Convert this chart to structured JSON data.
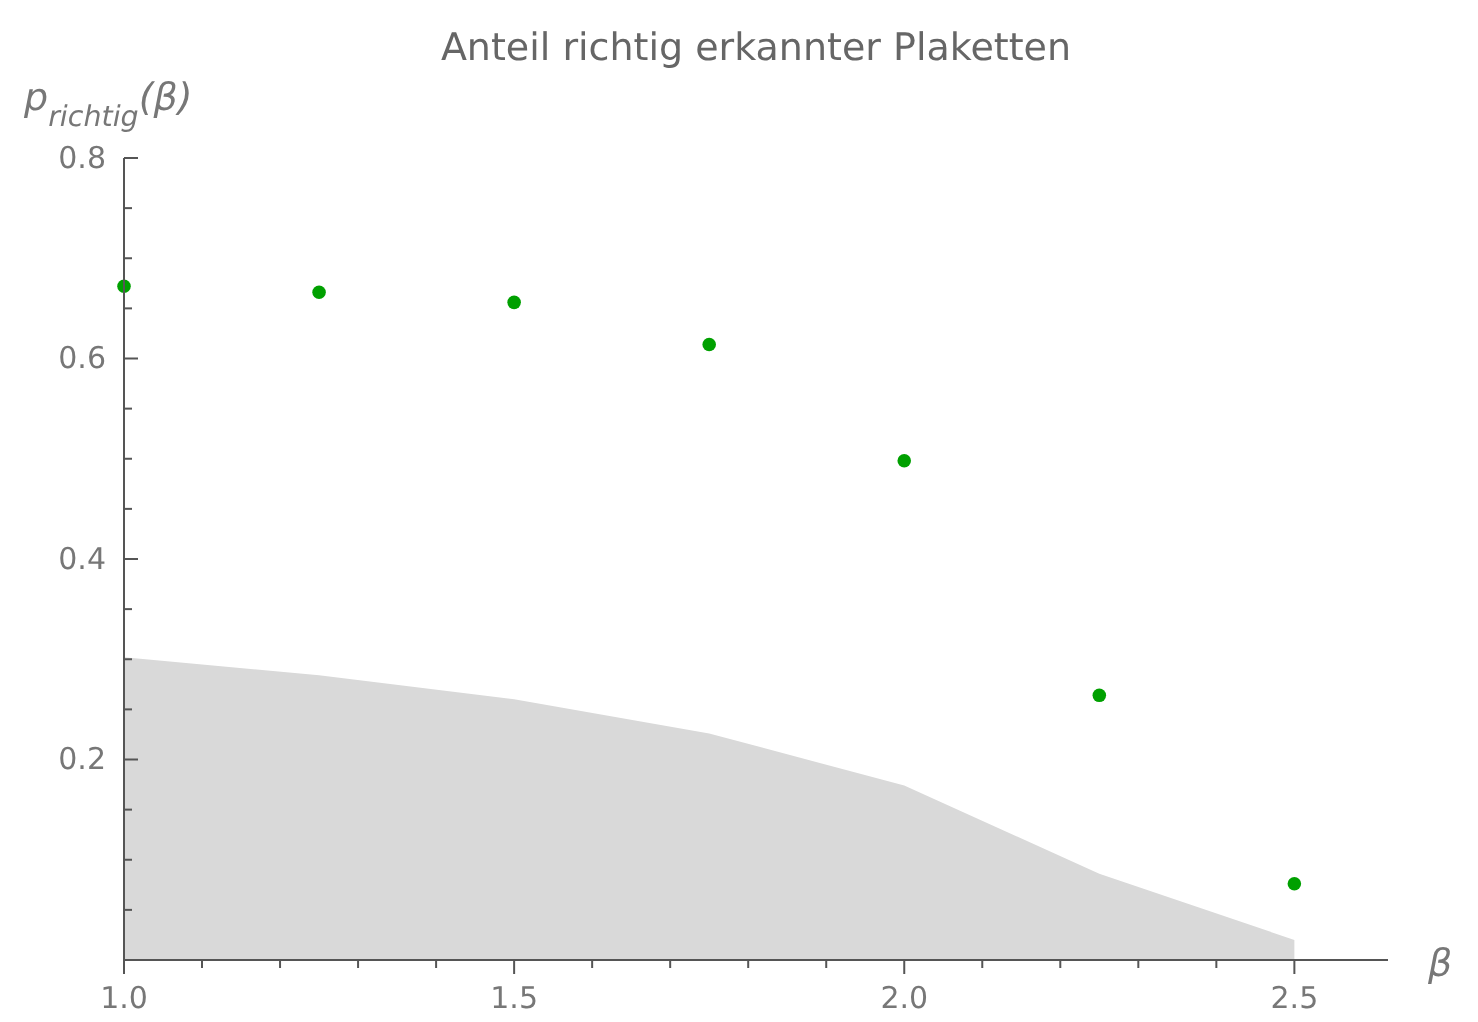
{
  "chart_data": {
    "type": "scatter",
    "title": "Anteil richtig erkannter Plaketten",
    "xlabel": "β",
    "ylabel": "p$_{richtig}$(β)",
    "xlim": [
      1.0,
      2.62
    ],
    "ylim": [
      0,
      0.8
    ],
    "xticks": [
      {
        "value": 1.0,
        "label": "1.0"
      },
      {
        "value": 1.1,
        "label": null
      },
      {
        "value": 1.2,
        "label": null
      },
      {
        "value": 1.3,
        "label": null
      },
      {
        "value": 1.4,
        "label": null
      },
      {
        "value": 1.5,
        "label": "1.5"
      },
      {
        "value": 1.6,
        "label": null
      },
      {
        "value": 1.7,
        "label": null
      },
      {
        "value": 1.8,
        "label": null
      },
      {
        "value": 1.9,
        "label": null
      },
      {
        "value": 2.0,
        "label": "2.0"
      },
      {
        "value": 2.1,
        "label": null
      },
      {
        "value": 2.2,
        "label": null
      },
      {
        "value": 2.3,
        "label": null
      },
      {
        "value": 2.4,
        "label": null
      },
      {
        "value": 2.5,
        "label": "2.5"
      }
    ],
    "yticks": [
      {
        "value": 0.05,
        "label": null
      },
      {
        "value": 0.1,
        "label": null
      },
      {
        "value": 0.15,
        "label": null
      },
      0.2,
      {
        "value": 0.25,
        "label": null
      },
      {
        "value": 0.3,
        "label": null
      },
      {
        "value": 0.35,
        "label": null
      },
      0.4,
      {
        "value": 0.45,
        "label": null
      },
      {
        "value": 0.5,
        "label": null
      },
      {
        "value": 0.55,
        "label": null
      },
      0.6,
      {
        "value": 0.65,
        "label": null
      },
      {
        "value": 0.7,
        "label": null
      },
      {
        "value": 0.75,
        "label": null
      },
      0.8
    ],
    "grid": false,
    "series": [
      {
        "type": "area",
        "color": "#d9d9d9",
        "x": [
          1.0,
          1.25,
          1.5,
          1.75,
          2.0,
          2.25,
          2.5
        ],
        "values": [
          0.302,
          0.284,
          0.26,
          0.226,
          0.174,
          0.086,
          0.02
        ]
      },
      {
        "marker": "circle",
        "color": "#00a000",
        "x": [
          1.0,
          1.25,
          1.5,
          1.75,
          2.0,
          2.25,
          2.5
        ],
        "values": [
          0.672,
          0.666,
          0.656,
          0.614,
          0.498,
          0.264,
          0.076
        ]
      }
    ]
  }
}
